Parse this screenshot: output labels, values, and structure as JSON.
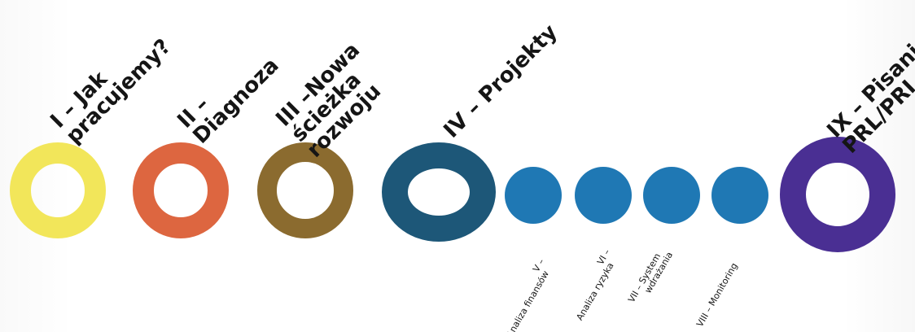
{
  "colors": {
    "stage1": "#f2e65a",
    "stage2": "#dd6640",
    "stage3": "#8b6b2f",
    "stage4": "#1d5778",
    "substage": "#1f78b4",
    "stage9": "#4a2f93",
    "text": "#151515"
  },
  "stages": [
    {
      "id": "I",
      "line1": "I – Jak",
      "line2": "pracujemy?"
    },
    {
      "id": "II",
      "line1": "II –",
      "line2": "Diagnoza"
    },
    {
      "id": "III",
      "line1": "III –Nowa",
      "line2": "ścieżka",
      "line3": "rozwoju"
    },
    {
      "id": "IV",
      "line1": "IV – Projekty"
    },
    {
      "id": "IX",
      "line1": "IX – Pisanie",
      "line2": "PRL/PRI"
    }
  ],
  "substages": [
    {
      "id": "V",
      "line1": "V –",
      "line2": "Analiza finansów"
    },
    {
      "id": "VI",
      "line1": "VI –",
      "line2": "Analiza ryzyka"
    },
    {
      "id": "VII",
      "line1": "VII – System",
      "line2": "wdrażania"
    },
    {
      "id": "VIII",
      "line1": "VIII – Monitoring"
    }
  ]
}
